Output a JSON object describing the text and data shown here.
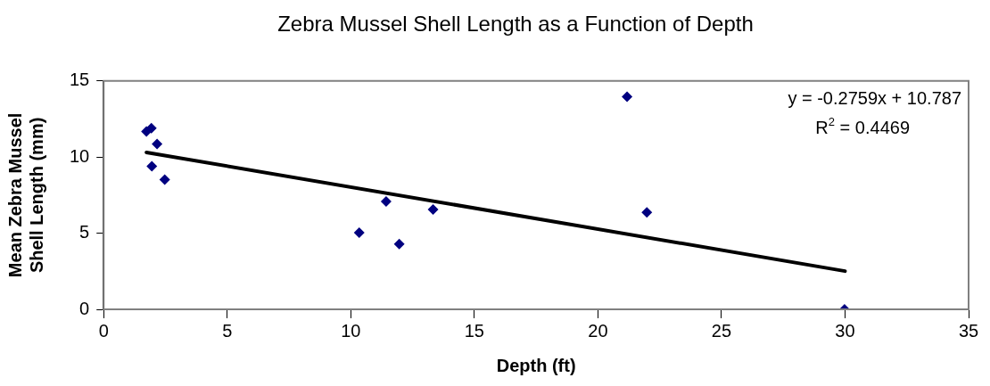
{
  "chart_data": {
    "type": "scatter",
    "title": "Zebra Mussel Shell Length as a Function of Depth",
    "xlabel": "Depth (ft)",
    "ylabel": "Mean Zebra Mussel Shell Length (mm)",
    "annotations": [
      "y = -0.2759x + 10.787",
      "R$^{2}$ = 0.4469"
    ],
    "series": [
      {
        "color": "#000080",
        "marker": "diamond",
        "x": [
          1.73,
          1.93,
          2.16,
          1.95,
          2.47,
          10.34,
          11.43,
          11.96,
          13.33,
          21.18,
          21.98,
          29.98
        ],
        "values": [
          11.68,
          11.9,
          10.86,
          9.39,
          8.52,
          5.04,
          7.08,
          4.29,
          6.56,
          13.96,
          6.37,
          0
        ]
      },
      {
        "type": "line",
        "color": "#000000",
        "marker": "none",
        "x": [
          1.73,
          30
        ],
        "values": [
          10.31,
          2.51
        ]
      }
    ],
    "xlim": [
      0,
      35
    ],
    "xticks": [
      0,
      5,
      10,
      15,
      20,
      25,
      30,
      35
    ],
    "ylim": [
      0,
      15
    ],
    "yticks": [
      0,
      5,
      10,
      15
    ],
    "grid": false,
    "legend": false
  }
}
